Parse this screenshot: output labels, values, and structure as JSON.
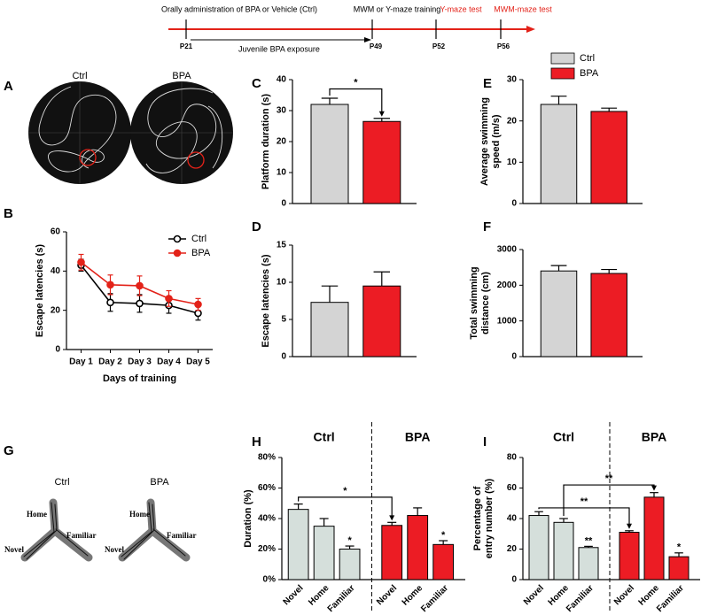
{
  "timeline": {
    "steps": [
      "Orally administration of BPA or Vehicle (Ctrl)",
      "MWM  or Y-maze training",
      "Y-maze test",
      "MWM-maze test"
    ],
    "days": [
      "P21",
      "P49",
      "P52",
      "P56"
    ],
    "exposure": "Juvenile BPA exposure"
  },
  "panel_labels": [
    "A",
    "B",
    "C",
    "D",
    "E",
    "F",
    "G",
    "H",
    "I"
  ],
  "maze_a": {
    "labels": [
      "Ctrl",
      "BPA"
    ]
  },
  "maze_g": {
    "labels": [
      "Ctrl",
      "BPA"
    ],
    "arms": [
      "Home",
      "Familiar",
      "Novel"
    ]
  },
  "legend": {
    "names": [
      "Ctrl",
      "BPA"
    ],
    "colors": [
      "#d4d4d4",
      "#ec1c24"
    ]
  },
  "chart_data": [
    {
      "type": "line",
      "ylabel": "Escape latencies (s)",
      "xlabel": "Days of training",
      "categories": [
        "Day 1",
        "Day 2",
        "Day 3",
        "Day 4",
        "Day 5"
      ],
      "series": [
        {
          "name": "Ctrl",
          "color": "#000000",
          "values": [
            43,
            24,
            23.5,
            22.5,
            18.5
          ],
          "errors": [
            3,
            4.5,
            4.5,
            4,
            3.5
          ]
        },
        {
          "name": "BPA",
          "color": "#e32219",
          "values": [
            44.5,
            33,
            32.5,
            26,
            23
          ],
          "errors": [
            4,
            5,
            5,
            4,
            3
          ]
        }
      ],
      "ylim": [
        0,
        60
      ],
      "yticks": [
        0,
        20,
        40,
        60
      ]
    },
    {
      "type": "bar",
      "ylabel": "Platform duration (s)",
      "categories": [
        null,
        null
      ],
      "values": [
        32,
        26.5
      ],
      "errors": [
        2,
        1
      ],
      "colors": [
        "#d4d4d4",
        "#ec1c24"
      ],
      "ylim": [
        0,
        40
      ],
      "yticks": [
        0,
        10,
        20,
        30,
        40
      ],
      "brackets": [
        "*"
      ]
    },
    {
      "type": "bar",
      "ylabel": [
        "Average swimming",
        "speed (m/s)"
      ],
      "categories": [
        null,
        null
      ],
      "values": [
        24,
        22.3
      ],
      "errors": [
        2,
        0.8
      ],
      "colors": [
        "#d4d4d4",
        "#ec1c24"
      ],
      "ylim": [
        0,
        30
      ],
      "yticks": [
        0,
        10,
        20,
        30
      ]
    },
    {
      "type": "bar",
      "ylabel": "Escape latencies (s)",
      "categories": [
        null,
        null
      ],
      "values": [
        7.3,
        9.5
      ],
      "errors": [
        2.2,
        1.9
      ],
      "colors": [
        "#d4d4d4",
        "#ec1c24"
      ],
      "ylim": [
        0,
        15
      ],
      "yticks": [
        0,
        5,
        10,
        15
      ]
    },
    {
      "type": "bar",
      "ylabel": [
        "Total swimming",
        "distance  (cm)"
      ],
      "categories": [
        null,
        null
      ],
      "values": [
        2400,
        2330
      ],
      "errors": [
        150,
        110
      ],
      "colors": [
        "#d4d4d4",
        "#ec1c24"
      ],
      "ylim": [
        0,
        3000
      ],
      "yticks": [
        0,
        1000,
        2000,
        3000
      ]
    },
    {
      "type": "bar",
      "ylabel": "Duration (%)",
      "groups": [
        "Ctrl",
        "BPA"
      ],
      "categories": [
        "Novel",
        "Home",
        "Familiar",
        "Novel",
        "Home",
        "Familiar"
      ],
      "values": [
        46,
        35,
        20,
        35.5,
        42,
        23
      ],
      "errors": [
        3.5,
        5,
        2,
        2,
        5,
        2.5
      ],
      "colors": [
        "#d5dfdb",
        "#d5dfdb",
        "#d5dfdb",
        "#ec1c24",
        "#ec1c24",
        "#ec1c24"
      ],
      "significance": [
        null,
        null,
        "*",
        null,
        null,
        "*"
      ],
      "brackets": [
        "*"
      ],
      "ylim": [
        0,
        80
      ],
      "yticks": [
        {
          "value": 0,
          "label": "0%"
        },
        {
          "value": 20,
          "label": "20%"
        },
        {
          "value": 40,
          "label": "40%"
        },
        {
          "value": 60,
          "label": "60%"
        },
        {
          "value": 80,
          "label": "80%"
        }
      ]
    },
    {
      "type": "bar",
      "ylabel": [
        "Percentage of",
        "entry number (%)"
      ],
      "groups": [
        "Ctrl",
        "BPA"
      ],
      "categories": [
        "Novel",
        "Home",
        "Familiar",
        "Novel",
        "Home",
        "Familiar"
      ],
      "values": [
        42,
        37.5,
        21,
        31,
        54,
        15
      ],
      "errors": [
        2.5,
        2.5,
        0.8,
        1,
        3,
        2.5
      ],
      "colors": [
        "#d5dfdb",
        "#d5dfdb",
        "#d5dfdb",
        "#ec1c24",
        "#ec1c24",
        "#ec1c24"
      ],
      "significance": [
        null,
        null,
        "**",
        null,
        null,
        "*"
      ],
      "brackets": [
        "**",
        "**"
      ],
      "ylim": [
        0,
        80
      ],
      "yticks": [
        0,
        20,
        40,
        60,
        80
      ]
    }
  ]
}
